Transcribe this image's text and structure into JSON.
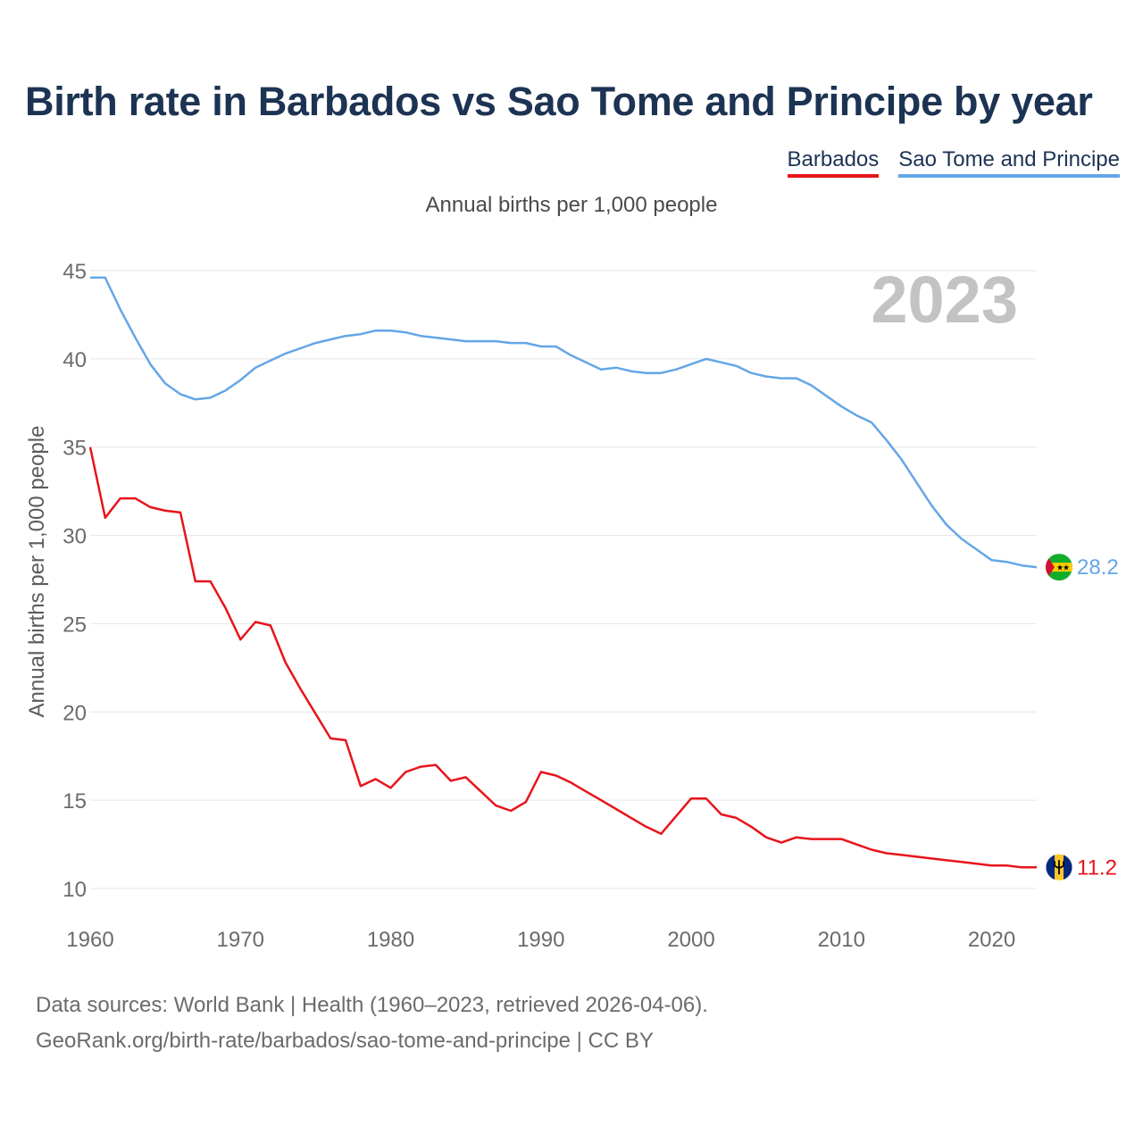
{
  "colors": {
    "title": "#1d3353",
    "barbados": "#e8141b",
    "stp": "#64a6e6",
    "grid": "#e6e6e6",
    "axis_text": "#6b6b6b",
    "year_watermark": "#c3c3c3"
  },
  "chart_data": {
    "type": "line",
    "title": "Birth rate in Barbados vs Sao Tome and Principe by year",
    "subtitle": "Annual births per 1,000 people",
    "ylabel": "Annual births per 1,000 people",
    "xlabel": "",
    "xlim": [
      1960,
      2023
    ],
    "ylim": [
      10,
      45
    ],
    "yticks": [
      10,
      15,
      20,
      25,
      30,
      35,
      40,
      45
    ],
    "xticks": [
      1960,
      1970,
      1980,
      1990,
      2000,
      2010,
      2020
    ],
    "grid": true,
    "legend_position": "top-right",
    "year_label": "2023",
    "x": [
      1960,
      1961,
      1962,
      1963,
      1964,
      1965,
      1966,
      1967,
      1968,
      1969,
      1970,
      1971,
      1972,
      1973,
      1974,
      1975,
      1976,
      1977,
      1978,
      1979,
      1980,
      1981,
      1982,
      1983,
      1984,
      1985,
      1986,
      1987,
      1988,
      1989,
      1990,
      1991,
      1992,
      1993,
      1994,
      1995,
      1996,
      1997,
      1998,
      1999,
      2000,
      2001,
      2002,
      2003,
      2004,
      2005,
      2006,
      2007,
      2008,
      2009,
      2010,
      2011,
      2012,
      2013,
      2014,
      2015,
      2016,
      2017,
      2018,
      2019,
      2020,
      2021,
      2022,
      2023
    ],
    "series": [
      {
        "name": "Barbados",
        "color": "#e8141b",
        "end_label": "11.2",
        "values": [
          35.0,
          31.0,
          32.1,
          32.1,
          31.6,
          31.4,
          31.3,
          27.4,
          27.4,
          25.9,
          24.1,
          25.1,
          24.9,
          22.8,
          21.3,
          19.9,
          18.5,
          18.4,
          15.8,
          16.2,
          15.7,
          16.6,
          16.9,
          17.0,
          16.1,
          16.3,
          15.5,
          14.7,
          14.4,
          14.9,
          16.6,
          16.4,
          16.0,
          15.5,
          15.0,
          14.5,
          14.0,
          13.5,
          13.1,
          14.1,
          15.1,
          15.1,
          14.2,
          14.0,
          13.5,
          12.9,
          12.6,
          12.9,
          12.8,
          12.8,
          12.8,
          12.5,
          12.2,
          12.0,
          11.9,
          11.8,
          11.7,
          11.6,
          11.5,
          11.4,
          11.3,
          11.3,
          11.2,
          11.2
        ]
      },
      {
        "name": "Sao Tome and Principe",
        "color": "#64a6e6",
        "end_label": "28.2",
        "values": [
          44.6,
          44.6,
          42.8,
          41.2,
          39.7,
          38.6,
          38.0,
          37.7,
          37.8,
          38.2,
          38.8,
          39.5,
          39.9,
          40.3,
          40.6,
          40.9,
          41.1,
          41.3,
          41.4,
          41.6,
          41.6,
          41.5,
          41.3,
          41.2,
          41.1,
          41.0,
          41.0,
          41.0,
          40.9,
          40.9,
          40.7,
          40.7,
          40.2,
          39.8,
          39.4,
          39.5,
          39.3,
          39.2,
          39.2,
          39.4,
          39.7,
          40.0,
          39.8,
          39.6,
          39.2,
          39.0,
          38.9,
          38.9,
          38.5,
          37.9,
          37.3,
          36.8,
          36.4,
          35.4,
          34.3,
          33.0,
          31.7,
          30.6,
          29.8,
          29.2,
          28.6,
          28.5,
          28.3,
          28.2
        ]
      }
    ]
  },
  "footer": {
    "line1": "Data sources: World Bank | Health (1960–2023, retrieved 2026-04-06).",
    "line2": "GeoRank.org/birth-rate/barbados/sao-tome-and-principe | CC BY"
  }
}
